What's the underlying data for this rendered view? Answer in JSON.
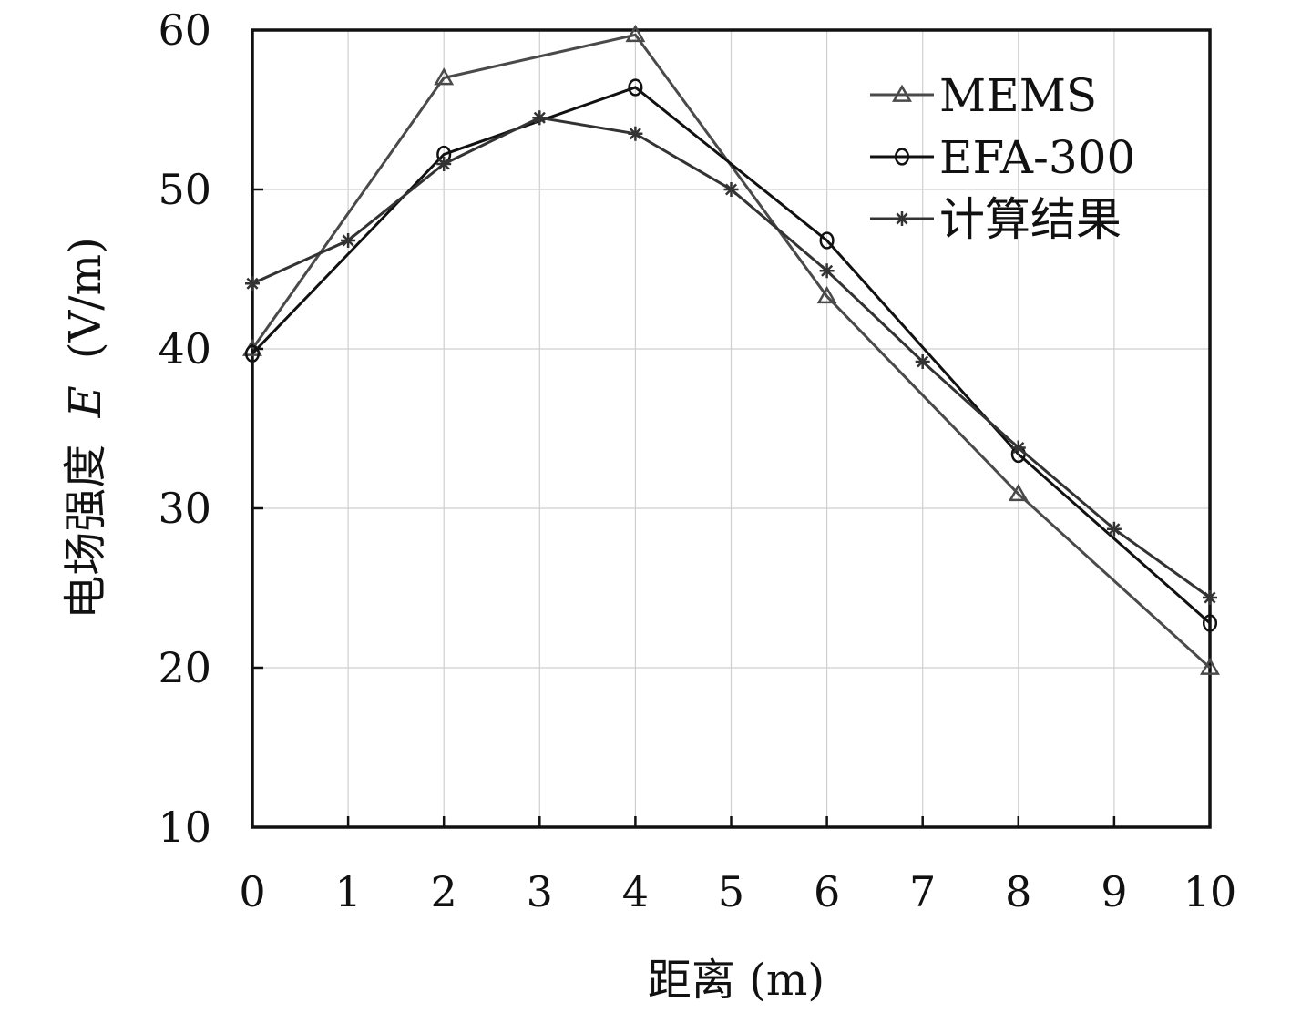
{
  "chart_data": {
    "type": "line",
    "xlabel": "距离 (m)",
    "ylabel_text": "电场强度",
    "ylabel_var": "E",
    "ylabel_unit": "(V/m)",
    "xlim": [
      0,
      10
    ],
    "ylim": [
      10,
      60
    ],
    "x_ticks": [
      0,
      1,
      2,
      3,
      4,
      5,
      6,
      7,
      8,
      9,
      10
    ],
    "y_ticks": [
      10,
      20,
      30,
      40,
      50,
      60
    ],
    "grid": true,
    "legend_position": "top-right",
    "x": [
      0,
      1,
      2,
      3,
      4,
      5,
      6,
      7,
      8,
      9,
      10
    ],
    "series": [
      {
        "name": "MEMS",
        "marker": "triangle",
        "color": "#4a4a4a",
        "x": [
          0,
          2,
          4,
          6,
          8,
          10
        ],
        "values": [
          40,
          57,
          59.7,
          43.3,
          30.9,
          20
        ]
      },
      {
        "name": "EFA-300",
        "marker": "circle",
        "color": "#111111",
        "x": [
          0,
          2,
          4,
          6,
          8,
          10
        ],
        "values": [
          39.7,
          52.2,
          56.4,
          46.8,
          33.4,
          22.8
        ]
      },
      {
        "name": "计算结果",
        "marker": "star",
        "color": "#333333",
        "x": [
          0,
          1,
          2,
          3,
          4,
          5,
          6,
          7,
          8,
          9,
          10
        ],
        "values": [
          44.1,
          46.8,
          51.6,
          54.5,
          53.5,
          50,
          44.9,
          39.2,
          33.8,
          28.7,
          24.4
        ]
      }
    ]
  }
}
